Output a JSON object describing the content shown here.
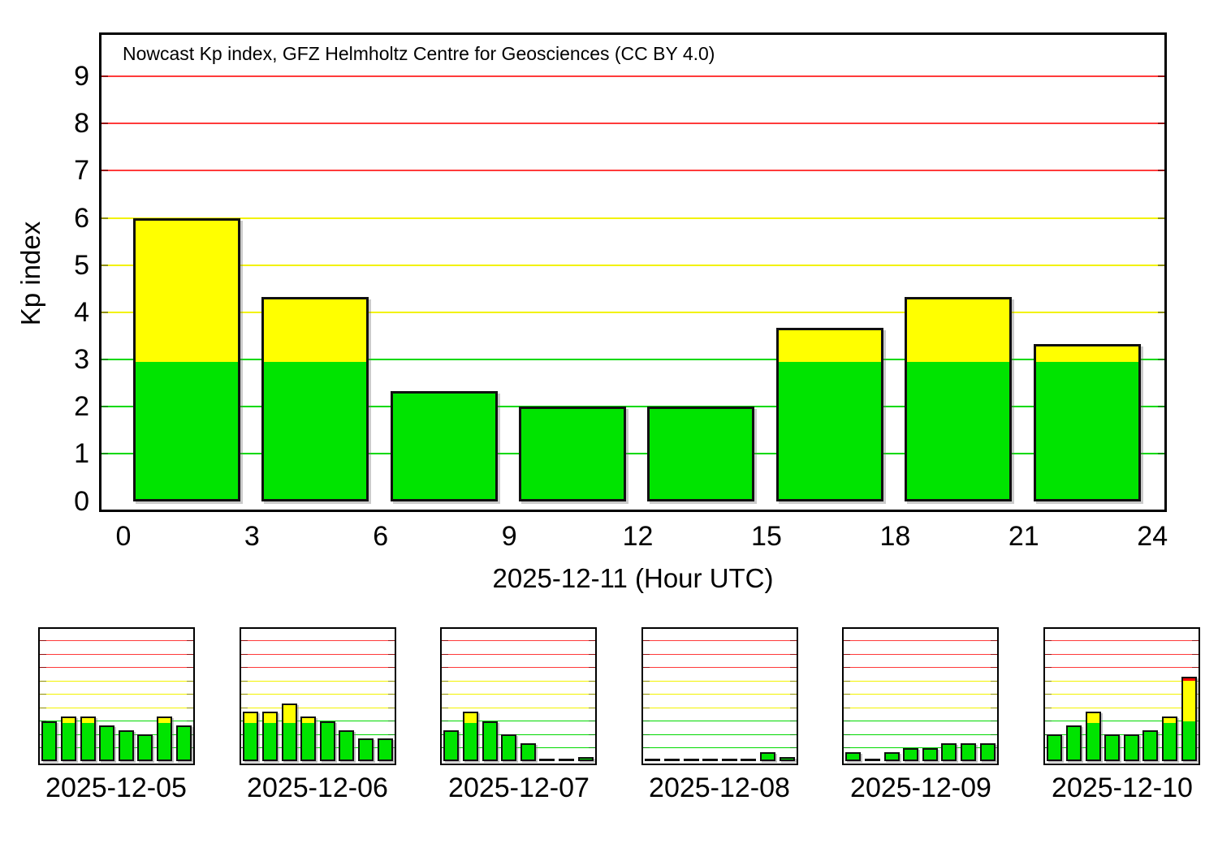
{
  "title": "Nowcast Kp index, GFZ Helmholtz Centre for Geosciences (CC BY 4.0)",
  "colors": {
    "bar_green": "#00e400",
    "bar_yellow": "#ffff00",
    "bar_red": "#ff0000",
    "grid_green": "#00d900",
    "grid_yellow": "#f2f200",
    "grid_red": "#ff3b3b",
    "tick_green": "#009100",
    "tick_yellow": "#8f8f00",
    "tick_red": "#941111",
    "frame": "#000000",
    "bar_border": "#101010",
    "text": "#000000"
  },
  "thresholds": {
    "green_upto": 3,
    "yellow_upto": 6
  },
  "chart_data": [
    {
      "id": "main",
      "type": "bar",
      "title": "Nowcast Kp index, GFZ Helmholtz Centre for Geosciences (CC BY 4.0)",
      "xlabel": "2025-12-11 (Hour UTC)",
      "ylabel": "Kp index",
      "grid": "on",
      "legend": "none",
      "bin_hours": 3,
      "bin_start_hours": [
        0,
        3,
        6,
        9,
        12,
        15,
        18,
        21
      ],
      "values": [
        6.0,
        4.33,
        2.33,
        2.0,
        2.0,
        3.67,
        4.33,
        3.33
      ],
      "x_ticks": [
        0,
        3,
        6,
        9,
        12,
        15,
        18,
        21,
        24
      ],
      "y_ticks": [
        0,
        1,
        2,
        3,
        4,
        5,
        6,
        7,
        8,
        9
      ],
      "xlim": [
        0,
        24
      ],
      "ylim": [
        0,
        9
      ]
    },
    {
      "id": "mini-1",
      "type": "bar",
      "date_label": "2025-12-05",
      "bin_hours": 3,
      "values": [
        3.0,
        3.33,
        3.33,
        2.67,
        2.33,
        2.0,
        3.33,
        2.67
      ],
      "ylim": [
        0,
        9
      ]
    },
    {
      "id": "mini-2",
      "type": "bar",
      "date_label": "2025-12-06",
      "bin_hours": 3,
      "values": [
        3.67,
        3.67,
        4.33,
        3.33,
        3.0,
        2.33,
        1.67,
        1.67
      ],
      "ylim": [
        0,
        9
      ]
    },
    {
      "id": "mini-3",
      "type": "bar",
      "date_label": "2025-12-07",
      "bin_hours": 3,
      "values": [
        2.33,
        3.67,
        3.0,
        2.0,
        1.33,
        0.0,
        0.0,
        0.33
      ],
      "ylim": [
        0,
        9
      ]
    },
    {
      "id": "mini-4",
      "type": "bar",
      "date_label": "2025-12-08",
      "bin_hours": 3,
      "values": [
        0.0,
        0.0,
        0.0,
        0.0,
        0.0,
        0.0,
        0.67,
        0.33
      ],
      "ylim": [
        0,
        9
      ]
    },
    {
      "id": "mini-5",
      "type": "bar",
      "date_label": "2025-12-09",
      "bin_hours": 3,
      "values": [
        0.67,
        0.0,
        0.67,
        1.0,
        1.0,
        1.33,
        1.33,
        1.33
      ],
      "ylim": [
        0,
        9
      ]
    },
    {
      "id": "mini-6",
      "type": "bar",
      "date_label": "2025-12-10",
      "bin_hours": 3,
      "values": [
        2.0,
        2.67,
        3.67,
        2.0,
        2.0,
        2.33,
        3.33,
        6.33
      ],
      "ylim": [
        0,
        9
      ]
    }
  ]
}
